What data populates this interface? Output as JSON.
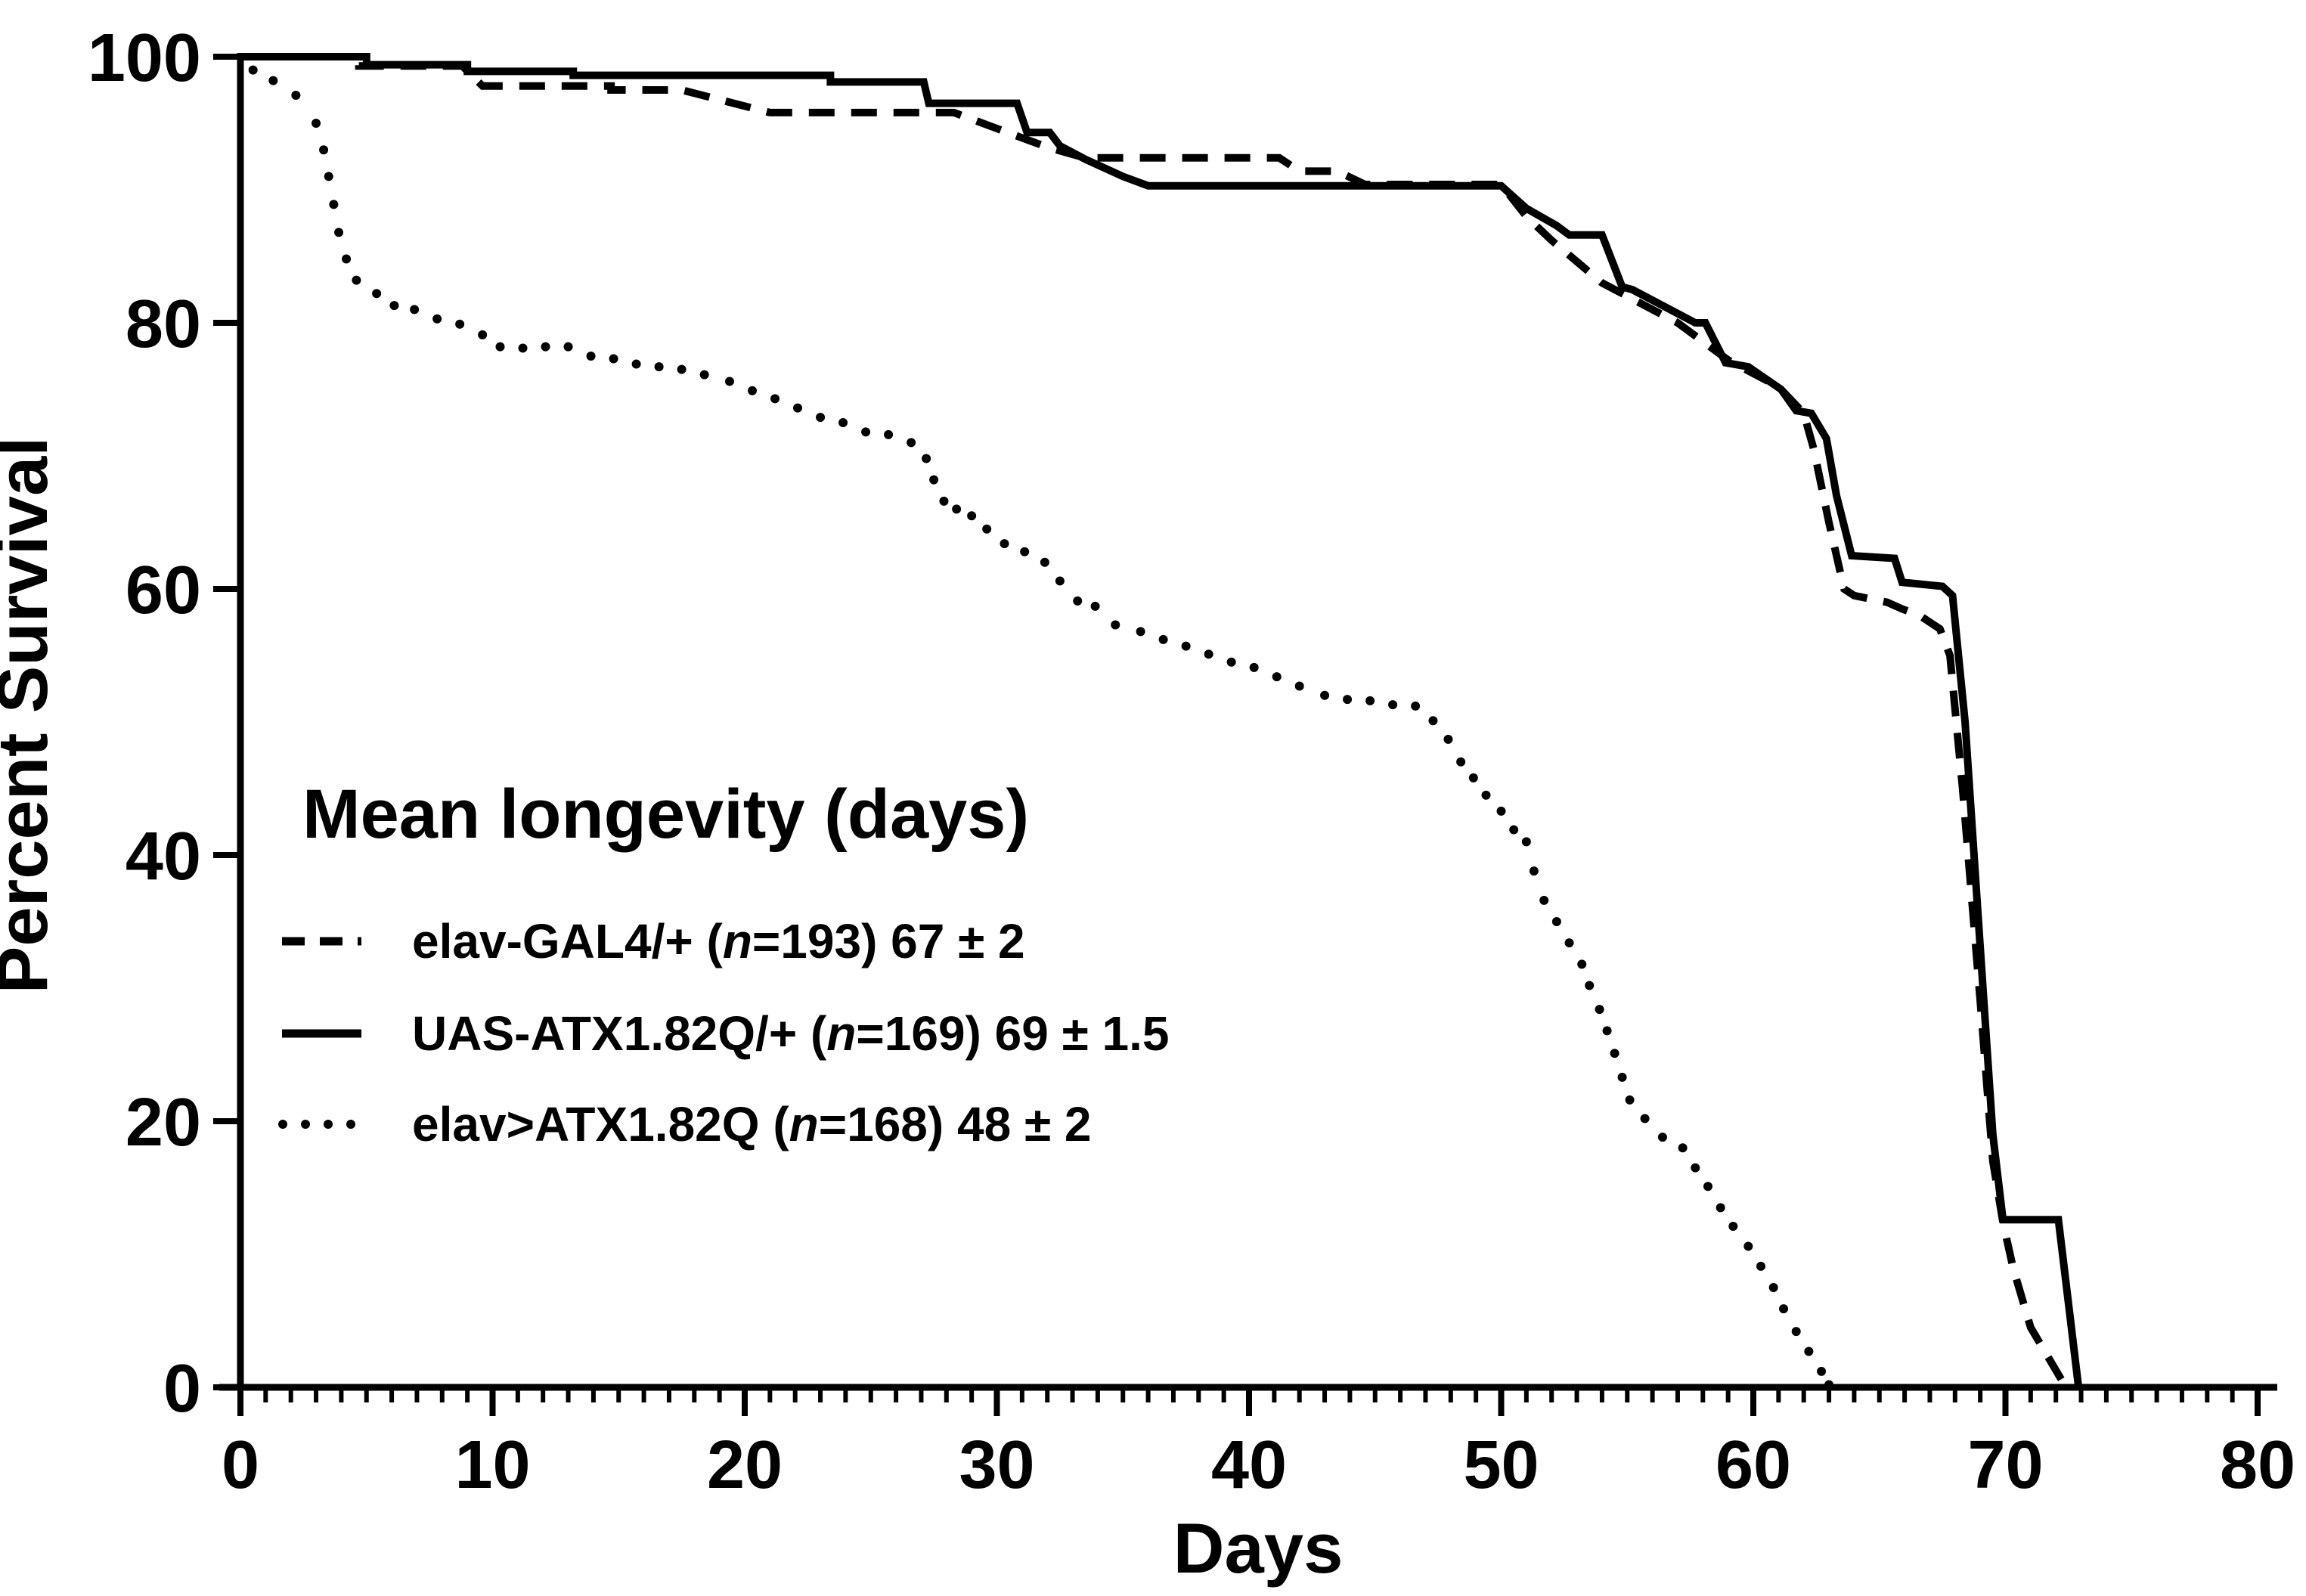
{
  "figure": {
    "background": "#ffffff",
    "ink": "#000000"
  },
  "chart_data": {
    "type": "line",
    "subtype": "kaplan-meier-survival",
    "title": "",
    "xlabel": "Days",
    "ylabel": "Percent Survival",
    "xlim": [
      0,
      80
    ],
    "ylim": [
      0,
      100
    ],
    "grid": false,
    "x_major_ticks": [
      0,
      10,
      20,
      30,
      40,
      50,
      60,
      70,
      80
    ],
    "x_minor_step": 1,
    "y_major_ticks": [
      0,
      20,
      40,
      60,
      80,
      100
    ],
    "legend": {
      "position": "inside-left",
      "title": "Mean longevity (days)",
      "entries": [
        {
          "series": "elav-GAL4/+",
          "style": "dashed",
          "n": 193,
          "mean_longevity": "67 ± 2",
          "label_prefix": "elav-GAL4/+  (",
          "label_italic": "n",
          "label_suffix": "=193) 67 ± 2"
        },
        {
          "series": "UAS-ATX1.82Q/+",
          "style": "solid",
          "n": 169,
          "mean_longevity": "69 ± 1.5",
          "label_prefix": "UAS-ATX1.82Q/+ (",
          "label_italic": "n",
          "label_suffix": "=169) 69 ± 1.5"
        },
        {
          "series": "elav>ATX1.82Q",
          "style": "dotted",
          "n": 168,
          "mean_longevity": "48 ± 2",
          "label_prefix": "elav>ATX1.82Q (",
          "label_italic": "n",
          "label_suffix": "=168) 48 ± 2"
        }
      ]
    },
    "series": [
      {
        "name": "elav-GAL4/+",
        "style": "dashed",
        "points": [
          [
            0,
            100
          ],
          [
            4.7,
            100
          ],
          [
            4.7,
            99.3
          ],
          [
            8.8,
            99.3
          ],
          [
            9.6,
            97.8
          ],
          [
            14.7,
            97.8
          ],
          [
            14.7,
            97.5
          ],
          [
            17.5,
            97.5
          ],
          [
            21,
            95.8
          ],
          [
            28.3,
            95.8
          ],
          [
            30,
            94.6
          ],
          [
            32,
            93.2
          ],
          [
            33.5,
            92.4
          ],
          [
            41.2,
            92.4
          ],
          [
            42,
            91.4
          ],
          [
            43.5,
            91.4
          ],
          [
            44.6,
            90.4
          ],
          [
            50,
            90.4
          ],
          [
            51,
            88
          ],
          [
            52,
            86.2
          ],
          [
            53,
            84.6
          ],
          [
            54,
            83
          ],
          [
            55,
            82
          ],
          [
            56,
            81
          ],
          [
            57,
            80
          ],
          [
            58,
            78.6
          ],
          [
            59,
            77.2
          ],
          [
            60,
            76.2
          ],
          [
            61,
            75.2
          ],
          [
            62,
            73.2
          ],
          [
            62.4,
            70.5
          ],
          [
            63,
            65
          ],
          [
            63.6,
            60
          ],
          [
            64,
            59.5
          ],
          [
            65.3,
            59
          ],
          [
            65.9,
            58.5
          ],
          [
            66.6,
            58
          ],
          [
            67.4,
            57
          ],
          [
            67.8,
            55
          ],
          [
            68.3,
            45
          ],
          [
            69,
            29
          ],
          [
            69.5,
            17
          ],
          [
            69.9,
            12.4
          ],
          [
            70.3,
            9
          ],
          [
            71,
            4.5
          ],
          [
            72.4,
            0
          ]
        ]
      },
      {
        "name": "UAS-ATX1.82Q/+",
        "style": "solid",
        "points": [
          [
            0,
            100
          ],
          [
            5,
            100
          ],
          [
            5,
            99.4
          ],
          [
            9,
            99.4
          ],
          [
            9,
            98.9
          ],
          [
            13.2,
            98.9
          ],
          [
            13.2,
            98.6
          ],
          [
            23.4,
            98.6
          ],
          [
            23.4,
            98.1
          ],
          [
            27.1,
            98.1
          ],
          [
            27.3,
            96.5
          ],
          [
            30.8,
            96.5
          ],
          [
            31.2,
            94.3
          ],
          [
            32.1,
            94.3
          ],
          [
            32.5,
            93.3
          ],
          [
            33.5,
            92.3
          ],
          [
            35,
            91
          ],
          [
            36,
            90.3
          ],
          [
            50,
            90.3
          ],
          [
            51,
            88.6
          ],
          [
            52.2,
            87.3
          ],
          [
            52.7,
            86.6
          ],
          [
            54,
            86.6
          ],
          [
            54.8,
            82.7
          ],
          [
            55.2,
            82.5
          ],
          [
            57.7,
            80
          ],
          [
            58.1,
            80
          ],
          [
            58.9,
            77
          ],
          [
            59.8,
            76.7
          ],
          [
            61.1,
            75
          ],
          [
            61.7,
            73.4
          ],
          [
            62.3,
            73.2
          ],
          [
            62.9,
            71.3
          ],
          [
            63.3,
            67
          ],
          [
            63.9,
            62.5
          ],
          [
            65.6,
            62.3
          ],
          [
            65.9,
            60.5
          ],
          [
            67.5,
            60.2
          ],
          [
            67.9,
            59.5
          ],
          [
            68.4,
            50
          ],
          [
            69,
            33
          ],
          [
            69.5,
            19
          ],
          [
            69.9,
            12.6
          ],
          [
            72.1,
            12.6
          ],
          [
            72.9,
            0
          ]
        ]
      },
      {
        "name": "elav>ATX1.82Q",
        "style": "dotted",
        "points": [
          [
            0.5,
            99
          ],
          [
            1.3,
            98.2
          ],
          [
            2.2,
            97.1
          ],
          [
            3.0,
            95.0
          ],
          [
            3.3,
            93.0
          ],
          [
            3.5,
            91.0
          ],
          [
            3.7,
            88.9
          ],
          [
            3.9,
            86.8
          ],
          [
            4.2,
            84.8
          ],
          [
            4.6,
            83.2
          ],
          [
            5.4,
            82.2
          ],
          [
            6.1,
            81.3
          ],
          [
            6.9,
            81.0
          ],
          [
            7.8,
            80.3
          ],
          [
            8.7,
            79.9
          ],
          [
            9.6,
            79.1
          ],
          [
            10.3,
            78.2
          ],
          [
            11.2,
            78.1
          ],
          [
            12.1,
            78.2
          ],
          [
            13.0,
            78.2
          ],
          [
            13.9,
            77.5
          ],
          [
            14.8,
            77.3
          ],
          [
            15.7,
            76.9
          ],
          [
            16.6,
            76.7
          ],
          [
            17.5,
            76.5
          ],
          [
            18.4,
            76.1
          ],
          [
            19.4,
            75.6
          ],
          [
            20.3,
            74.9
          ],
          [
            21.2,
            74.3
          ],
          [
            22.1,
            73.6
          ],
          [
            23.0,
            72.9
          ],
          [
            23.9,
            72.5
          ],
          [
            24.8,
            71.8
          ],
          [
            25.7,
            71.6
          ],
          [
            26.6,
            71.0
          ],
          [
            27.2,
            69.8
          ],
          [
            27.5,
            68.2
          ],
          [
            27.9,
            66.6
          ],
          [
            28.4,
            66.0
          ],
          [
            29.0,
            65.5
          ],
          [
            29.6,
            64.5
          ],
          [
            30.3,
            63.4
          ],
          [
            31.1,
            62.8
          ],
          [
            31.9,
            62.0
          ],
          [
            32.5,
            60.6
          ],
          [
            33.2,
            59.1
          ],
          [
            33.9,
            58.7
          ],
          [
            34.7,
            57.3
          ],
          [
            35.7,
            56.8
          ],
          [
            36.6,
            56.2
          ],
          [
            37.5,
            55.7
          ],
          [
            38.4,
            55.1
          ],
          [
            39.3,
            54.5
          ],
          [
            40.2,
            54.1
          ],
          [
            41.1,
            53.4
          ],
          [
            42.0,
            52.7
          ],
          [
            43.0,
            52.0
          ],
          [
            43.9,
            51.7
          ],
          [
            44.8,
            51.6
          ],
          [
            45.7,
            51.3
          ],
          [
            46.6,
            51.2
          ],
          [
            47.3,
            50.1
          ],
          [
            47.9,
            48.7
          ],
          [
            48.4,
            47.0
          ],
          [
            48.9,
            45.8
          ],
          [
            49.4,
            44.5
          ],
          [
            50.0,
            43.3
          ],
          [
            50.5,
            41.9
          ],
          [
            51.0,
            41.0
          ],
          [
            51.3,
            38.8
          ],
          [
            51.7,
            36.6
          ],
          [
            52.2,
            35.0
          ],
          [
            52.7,
            33.4
          ],
          [
            53.2,
            31.8
          ],
          [
            53.5,
            30.2
          ],
          [
            53.9,
            28.4
          ],
          [
            54.2,
            26.8
          ],
          [
            54.5,
            25.1
          ],
          [
            54.8,
            23.3
          ],
          [
            55.1,
            21.6
          ],
          [
            55.7,
            20.2
          ],
          [
            56.4,
            18.8
          ],
          [
            57.2,
            18.0
          ],
          [
            57.7,
            16.5
          ],
          [
            58.2,
            15.1
          ],
          [
            58.7,
            13.5
          ],
          [
            59.2,
            12.1
          ],
          [
            59.8,
            10.6
          ],
          [
            60.3,
            9.1
          ],
          [
            60.8,
            7.5
          ],
          [
            61.2,
            5.9
          ],
          [
            61.7,
            4.2
          ],
          [
            62.2,
            2.7
          ],
          [
            62.7,
            1.2
          ],
          [
            63.0,
            0.2
          ]
        ]
      }
    ]
  }
}
